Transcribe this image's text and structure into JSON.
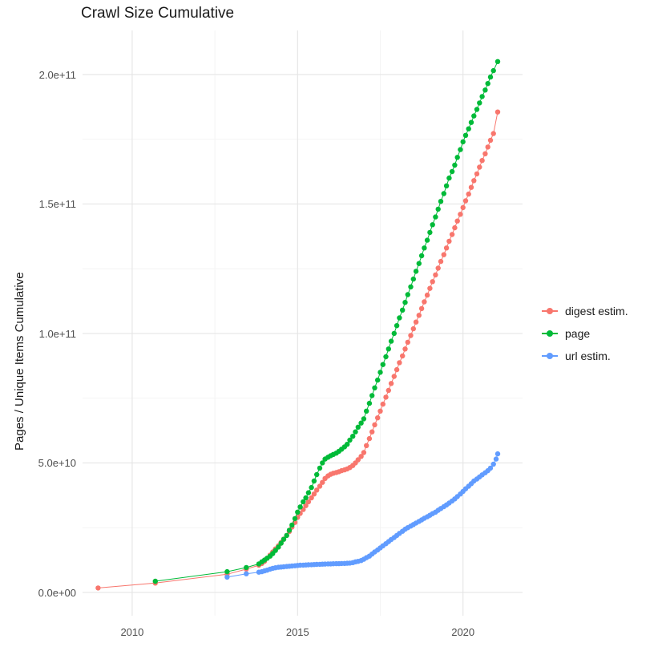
{
  "chart_data": {
    "type": "scatter",
    "title": "Crawl Size Cumulative",
    "xlabel": "",
    "ylabel": "Pages / Unique Items Cumulative",
    "grid": true,
    "legend_position": "right",
    "xlim": [
      2008.5,
      2021.8
    ],
    "ylim": [
      -9000000000.0,
      217000000000.0
    ],
    "x_ticks": [
      2010,
      2015,
      2020
    ],
    "x_tick_labels": [
      "2010",
      "2015",
      "2020"
    ],
    "x_minor_ticks": [
      2012.5,
      2017.5
    ],
    "y_ticks": [
      0,
      50000000000.0,
      100000000000.0,
      150000000000.0,
      200000000000.0
    ],
    "y_tick_labels": [
      "0.0e+00",
      "5.0e+10",
      "1.0e+11",
      "1.5e+11",
      "2.0e+11"
    ],
    "y_minor_ticks": [
      25000000000.0,
      75000000000.0,
      125000000000.0,
      175000000000.0
    ],
    "value_unit": 1000000000.0,
    "grid_major_color": "#e5e5e5",
    "grid_minor_color": "#f2f2f2",
    "series": [
      {
        "name": "digest estim.",
        "color": "#F8766D",
        "points": [
          [
            2008.97,
            1.7
          ],
          [
            2010.7,
            3.6
          ],
          [
            2012.87,
            7.0
          ],
          [
            2013.45,
            9.0
          ],
          [
            2013.83,
            10.5
          ],
          [
            2013.92,
            11.2
          ],
          [
            2014.0,
            12.0
          ],
          [
            2014.08,
            13.2
          ],
          [
            2014.17,
            14.4
          ],
          [
            2014.25,
            15.6
          ],
          [
            2014.33,
            16.8
          ],
          [
            2014.42,
            18.0
          ],
          [
            2014.5,
            19.3
          ],
          [
            2014.58,
            20.6
          ],
          [
            2014.67,
            22.0
          ],
          [
            2014.75,
            23.5
          ],
          [
            2014.83,
            25.2
          ],
          [
            2014.92,
            27.0
          ],
          [
            2015.0,
            29.0
          ],
          [
            2015.08,
            30.5
          ],
          [
            2015.17,
            32.0
          ],
          [
            2015.25,
            33.5
          ],
          [
            2015.33,
            35.0
          ],
          [
            2015.42,
            36.5
          ],
          [
            2015.5,
            38.0
          ],
          [
            2015.58,
            39.5
          ],
          [
            2015.67,
            41.0
          ],
          [
            2015.75,
            42.5
          ],
          [
            2015.83,
            44.0
          ],
          [
            2015.92,
            45.0
          ],
          [
            2016.0,
            45.6
          ],
          [
            2016.08,
            46.0
          ],
          [
            2016.17,
            46.3
          ],
          [
            2016.25,
            46.6
          ],
          [
            2016.33,
            47.0
          ],
          [
            2016.42,
            47.3
          ],
          [
            2016.5,
            47.7
          ],
          [
            2016.58,
            48.2
          ],
          [
            2016.67,
            49.0
          ],
          [
            2016.75,
            50.0
          ],
          [
            2016.83,
            51.2
          ],
          [
            2016.92,
            52.5
          ],
          [
            2017.0,
            54.0
          ],
          [
            2017.08,
            56.7
          ],
          [
            2017.17,
            59.4
          ],
          [
            2017.25,
            62.0
          ],
          [
            2017.33,
            64.7
          ],
          [
            2017.42,
            67.4
          ],
          [
            2017.5,
            70.0
          ],
          [
            2017.58,
            72.7
          ],
          [
            2017.67,
            75.4
          ],
          [
            2017.75,
            78.0
          ],
          [
            2017.83,
            80.7
          ],
          [
            2017.92,
            83.4
          ],
          [
            2018.0,
            86.0
          ],
          [
            2018.08,
            88.7
          ],
          [
            2018.17,
            91.3
          ],
          [
            2018.25,
            94.0
          ],
          [
            2018.33,
            96.6
          ],
          [
            2018.42,
            99.2
          ],
          [
            2018.5,
            101.8
          ],
          [
            2018.58,
            104.4
          ],
          [
            2018.67,
            107.0
          ],
          [
            2018.75,
            109.6
          ],
          [
            2018.83,
            112.2
          ],
          [
            2018.92,
            114.8
          ],
          [
            2019.0,
            117.4
          ],
          [
            2019.08,
            120.0
          ],
          [
            2019.17,
            122.6
          ],
          [
            2019.25,
            125.2
          ],
          [
            2019.33,
            127.8
          ],
          [
            2019.42,
            130.4
          ],
          [
            2019.5,
            133.0
          ],
          [
            2019.58,
            135.6
          ],
          [
            2019.67,
            138.2
          ],
          [
            2019.75,
            140.8
          ],
          [
            2019.83,
            143.4
          ],
          [
            2019.92,
            146.0
          ],
          [
            2020.0,
            148.6
          ],
          [
            2020.08,
            151.2
          ],
          [
            2020.17,
            153.8
          ],
          [
            2020.25,
            156.4
          ],
          [
            2020.33,
            159.0
          ],
          [
            2020.42,
            161.6
          ],
          [
            2020.5,
            164.2
          ],
          [
            2020.58,
            166.8
          ],
          [
            2020.67,
            169.4
          ],
          [
            2020.75,
            172.0
          ],
          [
            2020.83,
            174.6
          ],
          [
            2020.92,
            177.2
          ],
          [
            2021.05,
            185.5
          ]
        ]
      },
      {
        "name": "page",
        "color": "#00BA38",
        "points": [
          [
            2010.7,
            4.3
          ],
          [
            2012.87,
            8.0
          ],
          [
            2013.45,
            9.6
          ],
          [
            2013.83,
            11.0
          ],
          [
            2013.92,
            11.8
          ],
          [
            2014.0,
            12.5
          ],
          [
            2014.08,
            13.2
          ],
          [
            2014.17,
            14.0
          ],
          [
            2014.25,
            15.0
          ],
          [
            2014.33,
            16.2
          ],
          [
            2014.42,
            17.5
          ],
          [
            2014.5,
            19.0
          ],
          [
            2014.58,
            20.5
          ],
          [
            2014.67,
            22.0
          ],
          [
            2014.75,
            24.0
          ],
          [
            2014.83,
            26.0
          ],
          [
            2014.92,
            28.5
          ],
          [
            2015.0,
            31.0
          ],
          [
            2015.08,
            33.0
          ],
          [
            2015.17,
            35.0
          ],
          [
            2015.25,
            36.5
          ],
          [
            2015.33,
            38.5
          ],
          [
            2015.42,
            40.5
          ],
          [
            2015.5,
            43.0
          ],
          [
            2015.58,
            45.5
          ],
          [
            2015.67,
            48.0
          ],
          [
            2015.75,
            50.0
          ],
          [
            2015.83,
            51.5
          ],
          [
            2015.92,
            52.2
          ],
          [
            2016.0,
            52.8
          ],
          [
            2016.08,
            53.3
          ],
          [
            2016.17,
            53.8
          ],
          [
            2016.25,
            54.5
          ],
          [
            2016.33,
            55.3
          ],
          [
            2016.42,
            56.2
          ],
          [
            2016.5,
            57.2
          ],
          [
            2016.58,
            58.8
          ],
          [
            2016.67,
            60.3
          ],
          [
            2016.75,
            62.0
          ],
          [
            2016.83,
            63.8
          ],
          [
            2016.92,
            65.4
          ],
          [
            2017.0,
            67.0
          ],
          [
            2017.08,
            70.0
          ],
          [
            2017.17,
            73.0
          ],
          [
            2017.25,
            76.0
          ],
          [
            2017.33,
            79.0
          ],
          [
            2017.42,
            82.0
          ],
          [
            2017.5,
            85.0
          ],
          [
            2017.58,
            88.0
          ],
          [
            2017.67,
            91.0
          ],
          [
            2017.75,
            94.0
          ],
          [
            2017.83,
            97.0
          ],
          [
            2017.92,
            100.0
          ],
          [
            2018.0,
            103.0
          ],
          [
            2018.08,
            106.0
          ],
          [
            2018.17,
            109.0
          ],
          [
            2018.25,
            112.0
          ],
          [
            2018.33,
            115.0
          ],
          [
            2018.42,
            118.0
          ],
          [
            2018.5,
            121.0
          ],
          [
            2018.58,
            124.0
          ],
          [
            2018.67,
            127.0
          ],
          [
            2018.75,
            130.0
          ],
          [
            2018.83,
            133.0
          ],
          [
            2018.92,
            136.0
          ],
          [
            2019.0,
            139.0
          ],
          [
            2019.08,
            142.0
          ],
          [
            2019.17,
            145.0
          ],
          [
            2019.25,
            148.0
          ],
          [
            2019.33,
            151.0
          ],
          [
            2019.42,
            154.0
          ],
          [
            2019.5,
            157.0
          ],
          [
            2019.58,
            160.0
          ],
          [
            2019.67,
            162.5
          ],
          [
            2019.75,
            165.0
          ],
          [
            2019.83,
            168.0
          ],
          [
            2019.92,
            171.0
          ],
          [
            2020.0,
            174.0
          ],
          [
            2020.08,
            176.5
          ],
          [
            2020.17,
            179.0
          ],
          [
            2020.25,
            181.5
          ],
          [
            2020.33,
            184.0
          ],
          [
            2020.42,
            186.5
          ],
          [
            2020.5,
            189.0
          ],
          [
            2020.58,
            191.5
          ],
          [
            2020.67,
            194.0
          ],
          [
            2020.75,
            196.5
          ],
          [
            2020.83,
            199.0
          ],
          [
            2020.92,
            201.5
          ],
          [
            2021.05,
            205.0
          ]
        ]
      },
      {
        "name": "url estim.",
        "color": "#619CFF",
        "points": [
          [
            2012.87,
            5.9
          ],
          [
            2013.45,
            7.2
          ],
          [
            2013.83,
            7.8
          ],
          [
            2013.92,
            8.0
          ],
          [
            2014.0,
            8.3
          ],
          [
            2014.08,
            8.6
          ],
          [
            2014.17,
            9.0
          ],
          [
            2014.25,
            9.3
          ],
          [
            2014.33,
            9.5
          ],
          [
            2014.42,
            9.7
          ],
          [
            2014.5,
            9.8
          ],
          [
            2014.58,
            9.9
          ],
          [
            2014.67,
            10.0
          ],
          [
            2014.75,
            10.1
          ],
          [
            2014.83,
            10.2
          ],
          [
            2014.92,
            10.3
          ],
          [
            2015.0,
            10.4
          ],
          [
            2015.08,
            10.5
          ],
          [
            2015.17,
            10.55
          ],
          [
            2015.25,
            10.6
          ],
          [
            2015.33,
            10.65
          ],
          [
            2015.42,
            10.7
          ],
          [
            2015.5,
            10.75
          ],
          [
            2015.58,
            10.8
          ],
          [
            2015.67,
            10.85
          ],
          [
            2015.75,
            10.9
          ],
          [
            2015.83,
            10.95
          ],
          [
            2015.92,
            11.0
          ],
          [
            2016.0,
            11.0
          ],
          [
            2016.08,
            11.05
          ],
          [
            2016.17,
            11.1
          ],
          [
            2016.25,
            11.1
          ],
          [
            2016.33,
            11.15
          ],
          [
            2016.42,
            11.2
          ],
          [
            2016.5,
            11.25
          ],
          [
            2016.58,
            11.3
          ],
          [
            2016.67,
            11.5
          ],
          [
            2016.75,
            11.8
          ],
          [
            2016.83,
            12.0
          ],
          [
            2016.92,
            12.3
          ],
          [
            2017.0,
            12.8
          ],
          [
            2017.08,
            13.4
          ],
          [
            2017.17,
            14.0
          ],
          [
            2017.25,
            14.8
          ],
          [
            2017.33,
            15.6
          ],
          [
            2017.42,
            16.4
          ],
          [
            2017.5,
            17.2
          ],
          [
            2017.58,
            18.0
          ],
          [
            2017.67,
            18.8
          ],
          [
            2017.75,
            19.6
          ],
          [
            2017.83,
            20.4
          ],
          [
            2017.92,
            21.2
          ],
          [
            2018.0,
            22.0
          ],
          [
            2018.08,
            22.8
          ],
          [
            2018.17,
            23.6
          ],
          [
            2018.25,
            24.4
          ],
          [
            2018.33,
            25.0
          ],
          [
            2018.42,
            25.6
          ],
          [
            2018.5,
            26.2
          ],
          [
            2018.58,
            26.8
          ],
          [
            2018.67,
            27.4
          ],
          [
            2018.75,
            28.0
          ],
          [
            2018.83,
            28.6
          ],
          [
            2018.92,
            29.2
          ],
          [
            2019.0,
            29.8
          ],
          [
            2019.08,
            30.4
          ],
          [
            2019.17,
            31.0
          ],
          [
            2019.25,
            31.7
          ],
          [
            2019.33,
            32.4
          ],
          [
            2019.42,
            33.1
          ],
          [
            2019.5,
            33.8
          ],
          [
            2019.58,
            34.5
          ],
          [
            2019.67,
            35.3
          ],
          [
            2019.75,
            36.1
          ],
          [
            2019.83,
            37.0
          ],
          [
            2019.92,
            38.0
          ],
          [
            2020.0,
            39.0
          ],
          [
            2020.08,
            40.0
          ],
          [
            2020.17,
            41.0
          ],
          [
            2020.25,
            42.0
          ],
          [
            2020.33,
            43.0
          ],
          [
            2020.42,
            43.8
          ],
          [
            2020.5,
            44.6
          ],
          [
            2020.58,
            45.4
          ],
          [
            2020.67,
            46.2
          ],
          [
            2020.75,
            47.0
          ],
          [
            2020.83,
            48.0
          ],
          [
            2020.92,
            49.5
          ],
          [
            2021.0,
            51.5
          ],
          [
            2021.05,
            53.5
          ]
        ]
      }
    ]
  }
}
